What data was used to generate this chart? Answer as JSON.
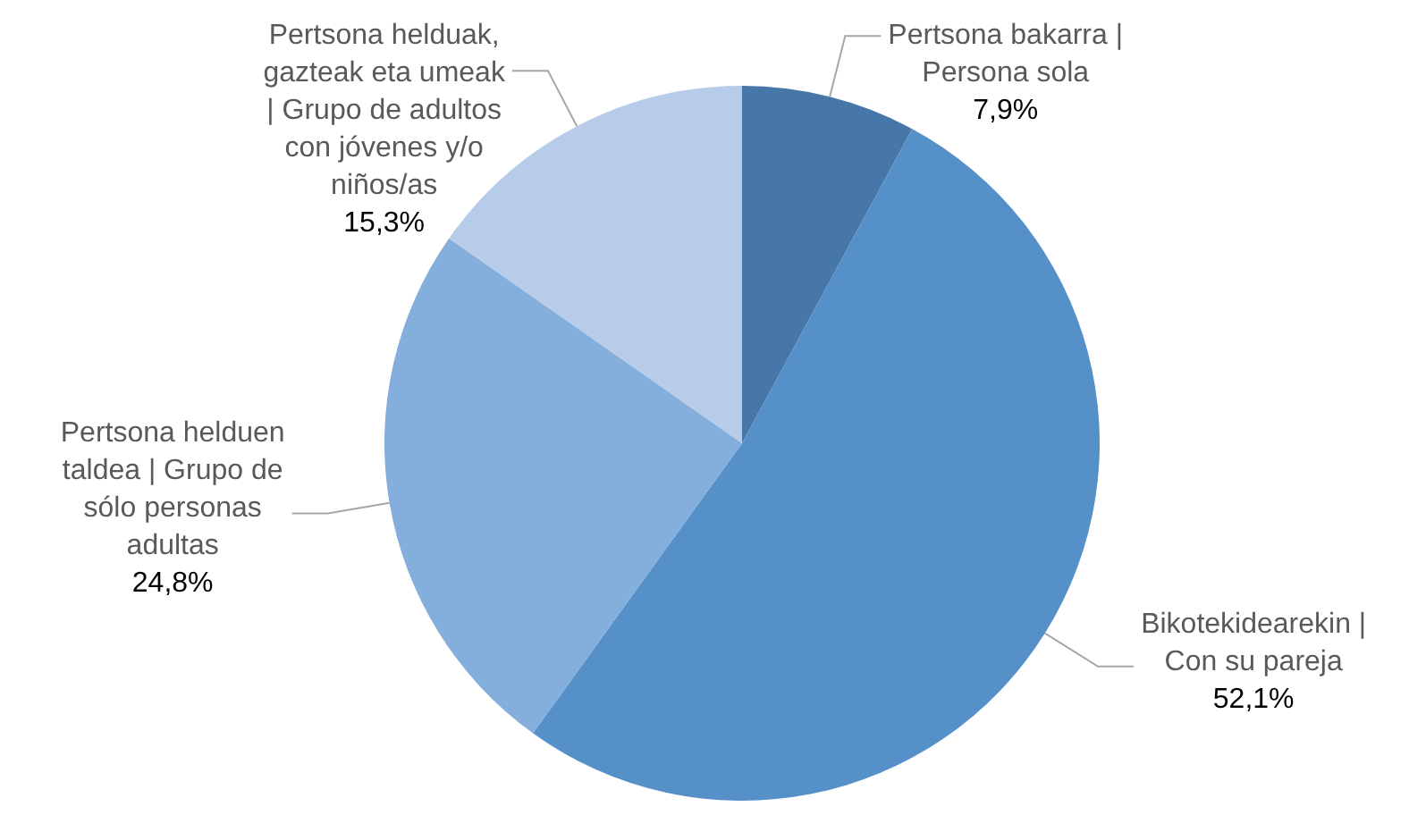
{
  "chart_data": {
    "type": "pie",
    "categories": [
      "Pertsona bakarra | Persona sola",
      "Bikotekidearekin | Con su pareja",
      "Pertsona helduen taldea | Grupo de sólo personas adultas",
      "Pertsona helduak, gazteak eta umeak | Grupo de adultos con jóvenes y/o niños/as"
    ],
    "values": [
      7.9,
      52.1,
      24.8,
      15.3
    ],
    "value_labels": [
      "7,9%",
      "52,1%",
      "24,8%",
      "15,3%"
    ],
    "colors": [
      "#4677a8",
      "#5590c8",
      "#84aedc",
      "#b7cce8"
    ],
    "legend": false
  }
}
